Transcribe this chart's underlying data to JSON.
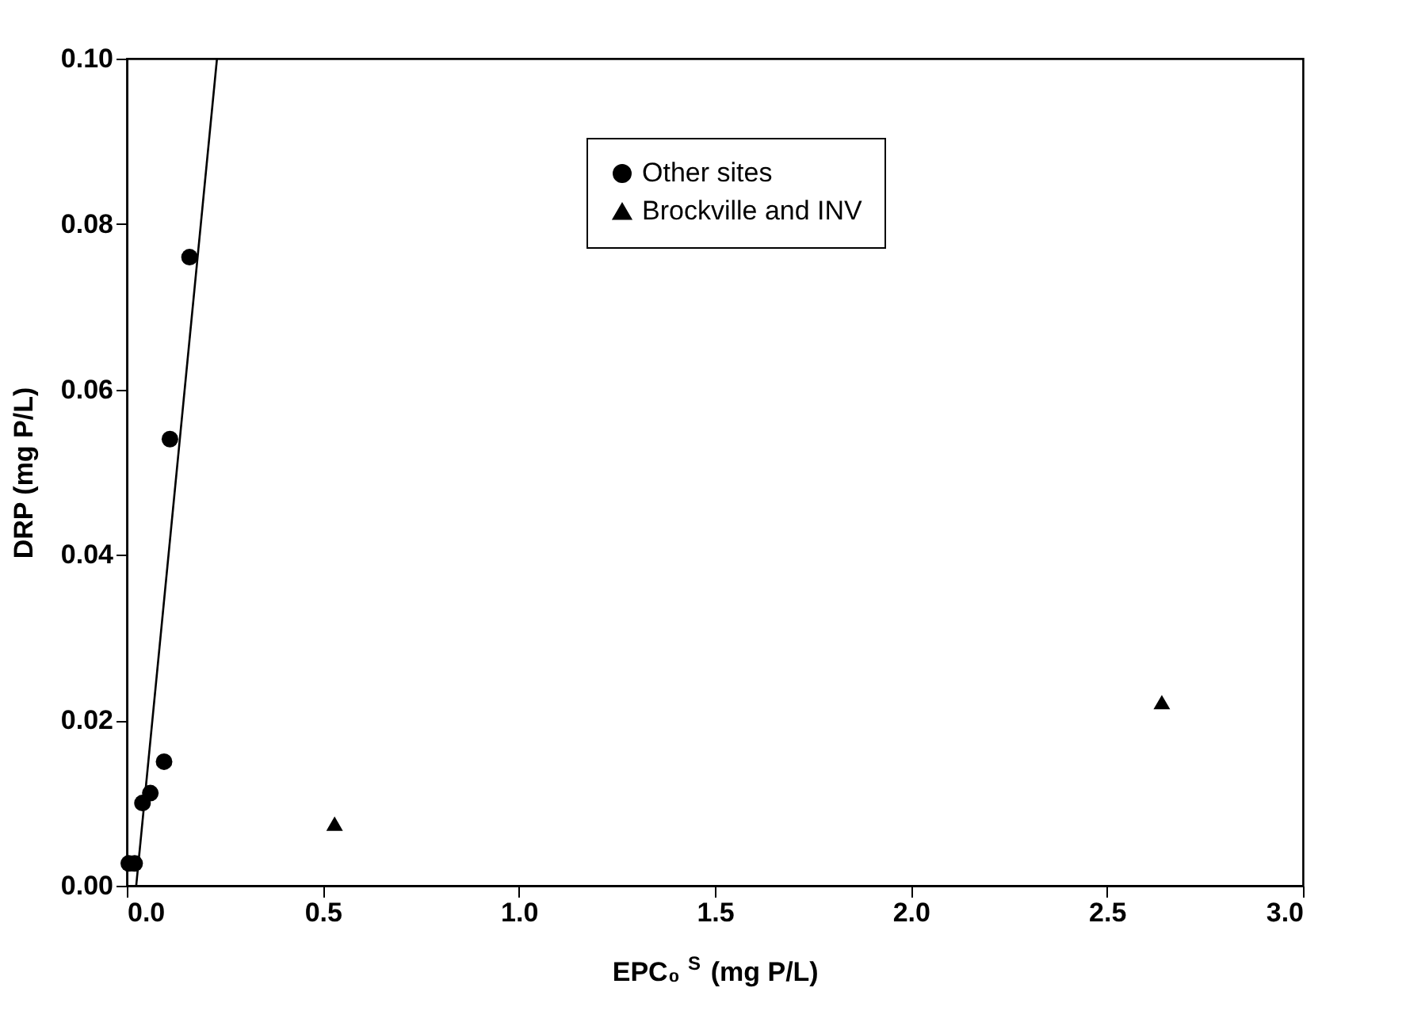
{
  "chart_data": {
    "type": "scatter",
    "xlabel": "EPC₀$^{S}$ (mg P/L)",
    "ylabel": "DRP (mg P/L)",
    "xlim": [
      0,
      3.0
    ],
    "ylim": [
      0,
      0.1
    ],
    "xticks": [
      {
        "value": 0,
        "label": "0.0"
      },
      {
        "value": 0.5,
        "label": "0.5"
      },
      {
        "value": 1,
        "label": "1.0"
      },
      {
        "value": 1.5,
        "label": "1.5"
      },
      {
        "value": 2,
        "label": "2.0"
      },
      {
        "value": 2.5,
        "label": "2.5"
      },
      {
        "value": 3,
        "label": "3.0"
      }
    ],
    "yticks": [
      {
        "value": 0,
        "label": "0.00"
      },
      {
        "value": 0.02,
        "label": "0.02"
      },
      {
        "value": 0.04,
        "label": "0.04"
      },
      {
        "value": 0.06,
        "label": "0.06"
      },
      {
        "value": 0.08,
        "label": "0.08"
      },
      {
        "value": 0.1,
        "label": "0.10"
      }
    ],
    "grid": false,
    "legend": "top",
    "series": [
      {
        "name": "Other sites",
        "color": "#000000",
        "marker": "circle",
        "x": [
          0.005,
          0.02,
          0.04,
          0.06,
          0.095,
          0.11,
          0.16
        ],
        "values": [
          0.0027,
          0.0027,
          0.01,
          0.0112,
          0.015,
          0.054,
          0.076
        ]
      },
      {
        "name": "Brockville and INV",
        "color": "#000000",
        "marker": "triangle",
        "x": [
          0.53,
          2.64
        ],
        "values": [
          0.0075,
          0.0222
        ]
      },
      {
        "type": "line",
        "color": "#000000",
        "line_style": "solid",
        "x": [
          0.024,
          0.23
        ],
        "values": [
          0.0,
          0.1
        ]
      }
    ]
  }
}
